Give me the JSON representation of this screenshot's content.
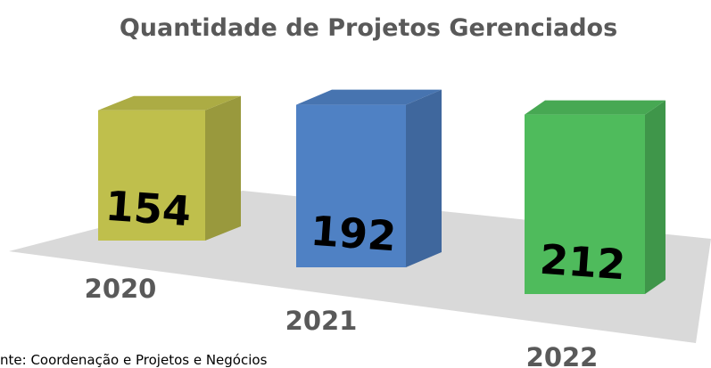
{
  "chart_data": {
    "type": "bar3d",
    "title": "Quantidade de Projetos Gerenciados",
    "categories": [
      "2020",
      "2021",
      "2022"
    ],
    "values": [
      154,
      192,
      212
    ],
    "colors": [
      "#bfbf4c",
      "#4f81c4",
      "#4fbb5c"
    ],
    "source": "nte: Coordenação e Projetos e Negócios"
  }
}
